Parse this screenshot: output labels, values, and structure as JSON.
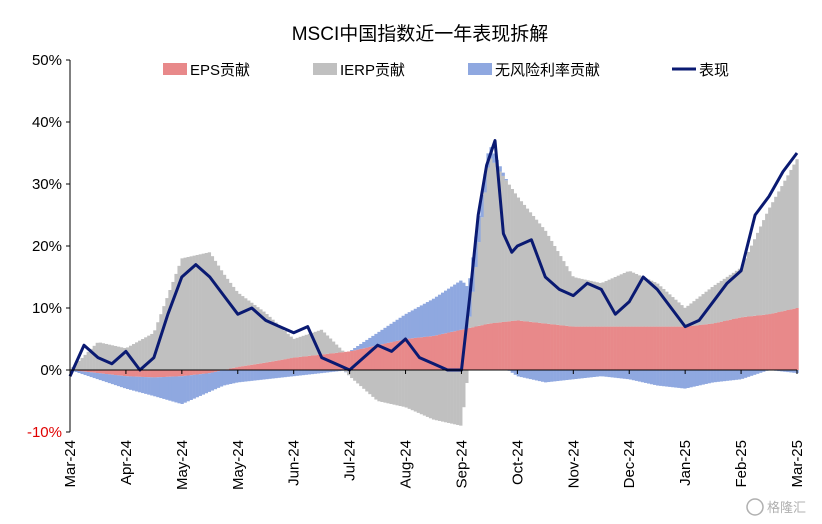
{
  "chart_data": {
    "type": "area",
    "title": "MSCI中国指数近一年表现拆解",
    "xlabel": "",
    "ylabel": "",
    "ylim": [
      -10,
      50
    ],
    "yticks": [
      "50%",
      "40%",
      "30%",
      "20%",
      "10%",
      "0%",
      "-10%"
    ],
    "yticks_values": [
      50,
      40,
      30,
      20,
      10,
      0,
      -10
    ],
    "negative_tick_color": "#e00000",
    "x_tick_labels": [
      "Mar-24",
      "Apr-24",
      "May-24",
      "May-24",
      "Jun-24",
      "Jul-24",
      "Aug-24",
      "Sep-24",
      "Oct-24",
      "Nov-24",
      "Dec-24",
      "Jan-25",
      "Feb-25",
      "Mar-25"
    ],
    "x_tick_positions": [
      0,
      1,
      2,
      3,
      4,
      5,
      6,
      7,
      8,
      9,
      10,
      11,
      12,
      13
    ],
    "x_range": [
      0,
      13
    ],
    "grid": false,
    "legend_position": "top",
    "series": [
      {
        "name": "EPS贡献",
        "kind": "area",
        "color": "#e8898a",
        "x": [
          0,
          0.5,
          1,
          1.5,
          2,
          2.5,
          3,
          3.5,
          4,
          4.5,
          5,
          5.5,
          6,
          6.5,
          7,
          7.5,
          8,
          8.5,
          9,
          9.5,
          10,
          10.5,
          11,
          11.5,
          12,
          12.5,
          13
        ],
        "values": [
          0,
          -0.5,
          -1,
          -1.2,
          -1,
          -0.5,
          0.5,
          1.2,
          2,
          2.5,
          3,
          4,
          5,
          5.5,
          6.5,
          7.5,
          8,
          7.5,
          7,
          7,
          7,
          7,
          7,
          7.5,
          8.5,
          9,
          10
        ]
      },
      {
        "name": "IERP贡献",
        "kind": "area",
        "color": "#c0c0c0",
        "x": [
          0,
          0.5,
          1,
          1.5,
          2,
          2.5,
          3,
          3.5,
          4,
          4.5,
          5,
          5.5,
          6,
          6.5,
          7,
          7.5,
          8,
          8.5,
          9,
          9.5,
          10,
          10.5,
          11,
          11.5,
          12,
          12.5,
          13
        ],
        "values": [
          0,
          4.5,
          3.5,
          6,
          18,
          19,
          12,
          8,
          3,
          4,
          -1,
          -5,
          -6,
          -8,
          -9,
          27,
          20,
          15,
          8,
          7,
          9,
          7,
          3,
          6,
          8,
          17,
          24
        ]
      },
      {
        "name": "无风险利率贡献",
        "kind": "area",
        "color": "#8fa8e0",
        "x": [
          0,
          0.5,
          1,
          1.5,
          2,
          2.5,
          3,
          3.5,
          4,
          4.5,
          5,
          5.5,
          6,
          6.5,
          7,
          7.5,
          8,
          8.5,
          9,
          9.5,
          10,
          10.5,
          11,
          11.5,
          12,
          12.5,
          13
        ],
        "values": [
          0,
          -1,
          -2,
          -3,
          -4.5,
          -3,
          -2,
          -1.5,
          -1,
          -0.5,
          0,
          2,
          4,
          6,
          8,
          2,
          -1,
          -2,
          -1.5,
          -1,
          -1.5,
          -2.5,
          -3,
          -2,
          -1.5,
          0,
          -0.5
        ]
      },
      {
        "name": "表现",
        "kind": "line",
        "color": "#0a1a72",
        "x": [
          0,
          0.25,
          0.5,
          0.75,
          1,
          1.25,
          1.5,
          1.75,
          2,
          2.25,
          2.5,
          2.75,
          3,
          3.25,
          3.5,
          3.75,
          4,
          4.25,
          4.5,
          4.75,
          5,
          5.25,
          5.5,
          5.75,
          6,
          6.25,
          6.5,
          6.75,
          7,
          7.15,
          7.3,
          7.45,
          7.6,
          7.75,
          7.9,
          8,
          8.25,
          8.5,
          8.75,
          9,
          9.25,
          9.5,
          9.75,
          10,
          10.25,
          10.5,
          10.75,
          11,
          11.25,
          11.5,
          11.75,
          12,
          12.25,
          12.5,
          12.75,
          13
        ],
        "values": [
          -1,
          4,
          2,
          1,
          3,
          0,
          2,
          9,
          15,
          17,
          15,
          12,
          9,
          10,
          8,
          7,
          6,
          7,
          2,
          1,
          0,
          2,
          4,
          3,
          5,
          2,
          1,
          0,
          0,
          12,
          25,
          33,
          37,
          22,
          19,
          20,
          21,
          15,
          13,
          12,
          14,
          13,
          9,
          11,
          15,
          13,
          10,
          7,
          8,
          11,
          14,
          16,
          25,
          28,
          32,
          35
        ]
      }
    ]
  },
  "watermark": {
    "icon": "ge-logo-icon",
    "text": "格隆汇"
  }
}
